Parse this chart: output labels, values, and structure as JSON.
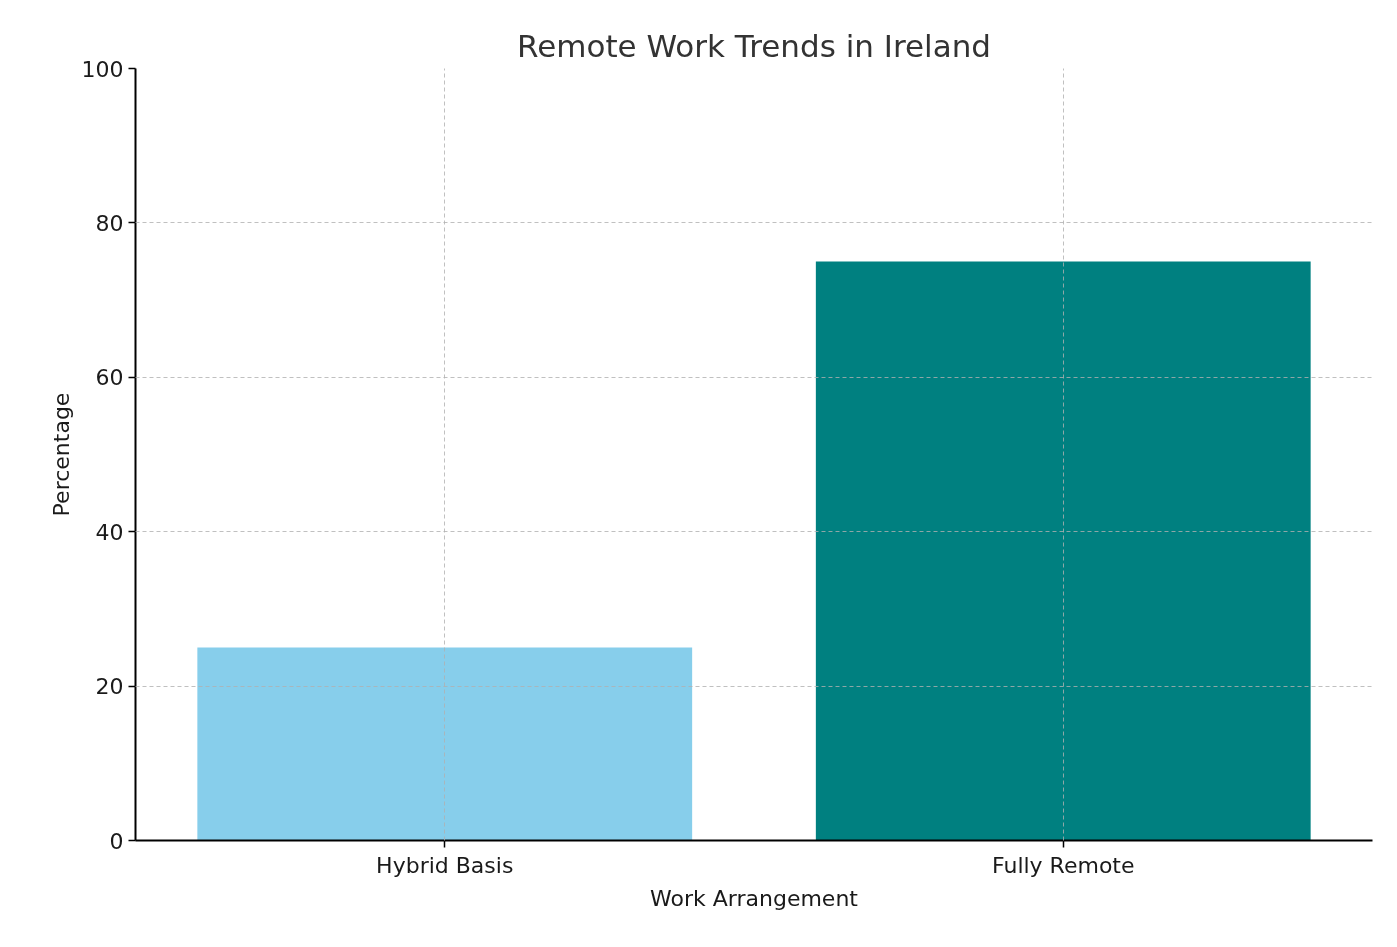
{
  "chart_data": {
    "type": "bar",
    "title": "Remote Work Trends in Ireland",
    "xlabel": "Work Arrangement",
    "ylabel": "Percentage",
    "categories": [
      "Hybrid Basis",
      "Fully Remote"
    ],
    "values": [
      25,
      75
    ],
    "colors": [
      "#87ceeb",
      "#008080"
    ],
    "ylim": [
      0,
      100
    ],
    "yticks": [
      0,
      20,
      40,
      60,
      80,
      100
    ],
    "grid": true
  }
}
